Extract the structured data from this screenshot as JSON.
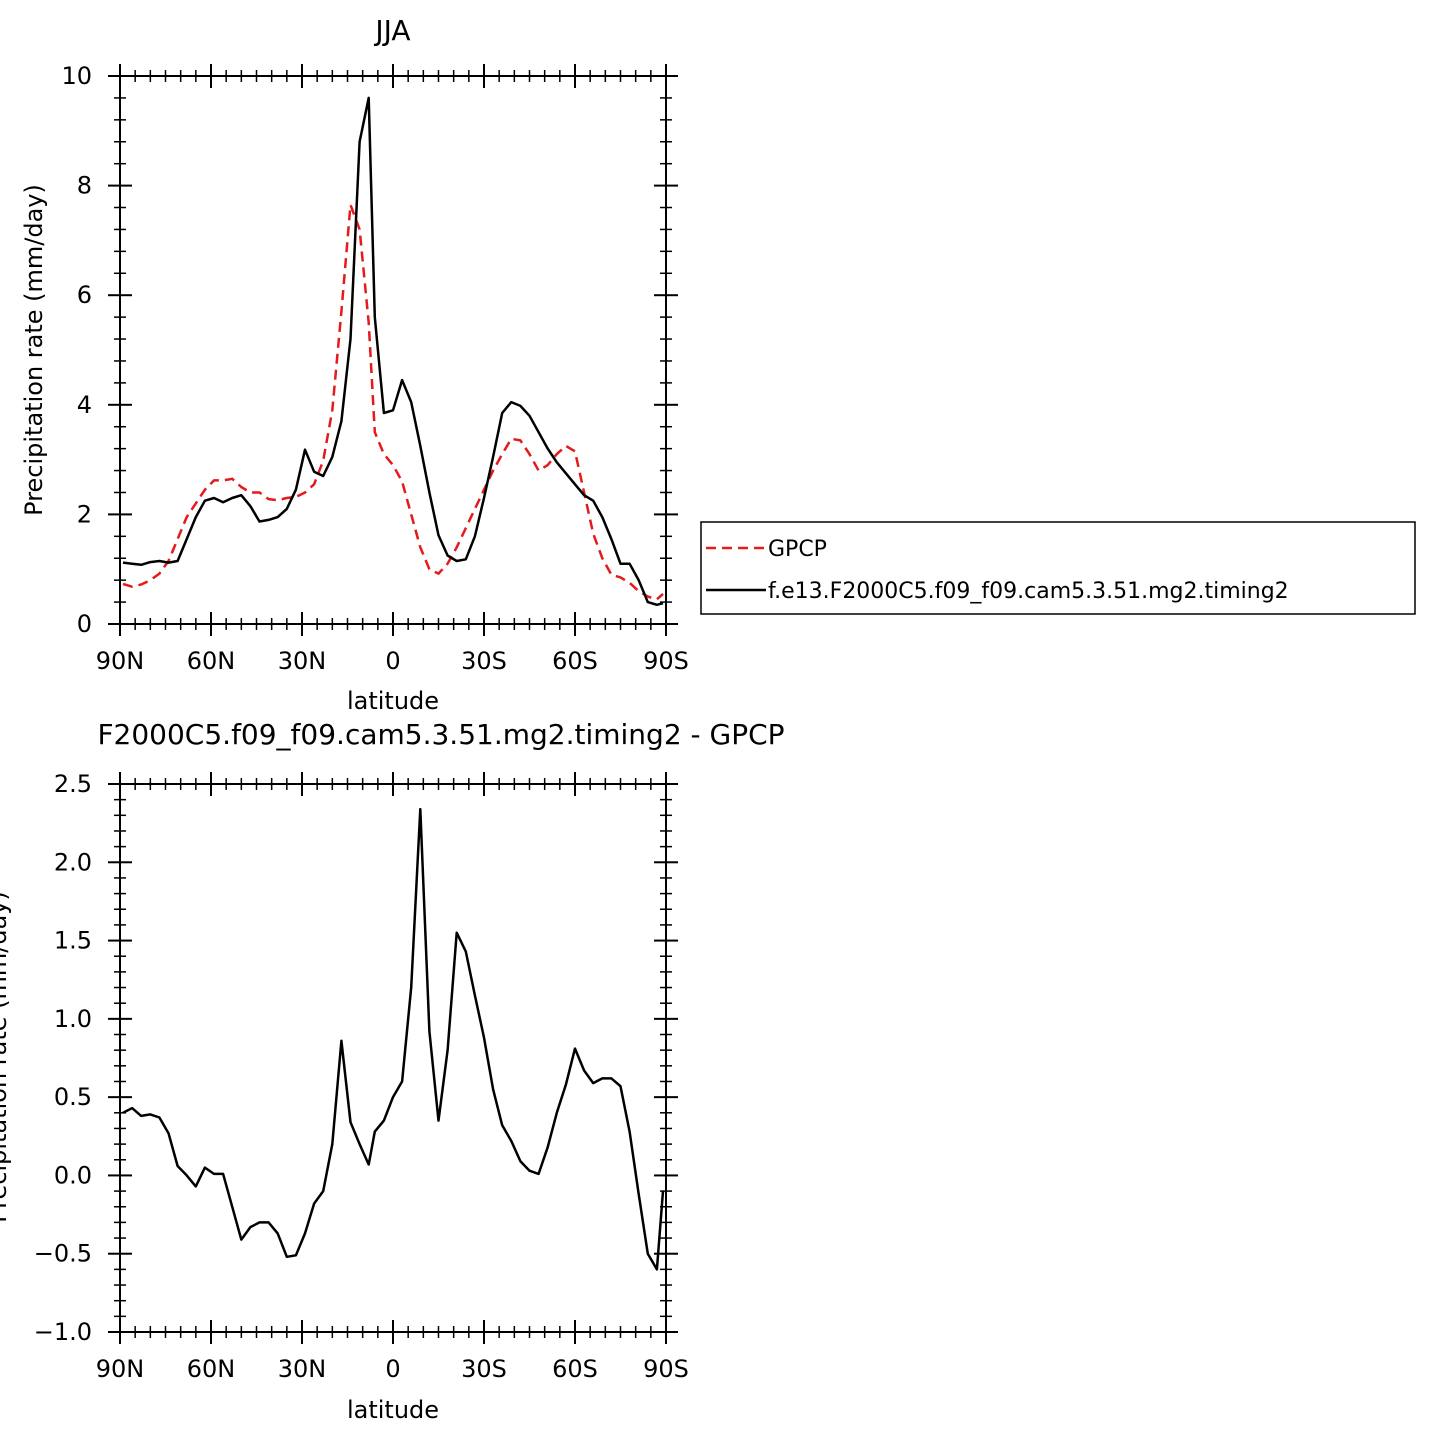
{
  "chart_data": [
    {
      "type": "line",
      "title": "JJA",
      "xlabel": "latitude",
      "ylabel": "Precipitation rate (mm/day)",
      "xlim": [
        90,
        -90
      ],
      "ylim": [
        0,
        10
      ],
      "xticks": [
        90,
        60,
        30,
        0,
        -30,
        -60,
        -90
      ],
      "xtick_labels": [
        "90N",
        "60N",
        "30N",
        "0",
        "30S",
        "60S",
        "90S"
      ],
      "yticks": [
        0,
        2,
        4,
        6,
        8,
        10
      ],
      "ytick_labels": [
        "0",
        "2",
        "4",
        "6",
        "8",
        "10"
      ],
      "grid": false,
      "legend_position": "right",
      "series": [
        {
          "name": "GPCP",
          "color": "#e41a1c",
          "dash": "dashed",
          "x": [
            89,
            86,
            83,
            80,
            77,
            74,
            71,
            68,
            65,
            62,
            59,
            56,
            53,
            50,
            47,
            44,
            41,
            38,
            35,
            32,
            29,
            26,
            23,
            20,
            17,
            14,
            11,
            8,
            6,
            3,
            0,
            -3,
            -6,
            -9,
            -12,
            -15,
            -18,
            -21,
            -24,
            -27,
            -30,
            -33,
            -36,
            -39,
            -42,
            -45,
            -48,
            -51,
            -54,
            -57,
            -60,
            -63,
            -66,
            -69,
            -72,
            -75,
            -78,
            -81,
            -84,
            -87,
            -89
          ],
          "y": [
            0.73,
            0.68,
            0.72,
            0.8,
            0.92,
            1.15,
            1.55,
            1.95,
            2.2,
            2.45,
            2.62,
            2.62,
            2.65,
            2.5,
            2.4,
            2.4,
            2.28,
            2.26,
            2.3,
            2.32,
            2.4,
            2.55,
            2.98,
            3.9,
            5.7,
            7.65,
            7.2,
            5.5,
            3.5,
            3.1,
            2.9,
            2.6,
            2.0,
            1.4,
            1.0,
            0.92,
            1.1,
            1.4,
            1.75,
            2.1,
            2.45,
            2.8,
            3.1,
            3.38,
            3.35,
            3.1,
            2.8,
            2.9,
            3.1,
            3.25,
            3.15,
            2.4,
            1.65,
            1.2,
            0.9,
            0.85,
            0.75,
            0.6,
            0.5,
            0.45,
            0.55
          ]
        },
        {
          "name": "f.e13.F2000C5.f09_f09.cam5.3.51.mg2.timing2",
          "color": "#000000",
          "dash": "solid",
          "x": [
            89,
            86,
            83,
            80,
            77,
            74,
            71,
            68,
            65,
            62,
            59,
            56,
            53,
            50,
            47,
            44,
            41,
            38,
            35,
            32,
            29,
            26,
            23,
            20,
            17,
            14,
            11,
            8,
            6,
            3,
            0,
            -3,
            -6,
            -9,
            -12,
            -15,
            -18,
            -21,
            -24,
            -27,
            -30,
            -33,
            -36,
            -39,
            -42,
            -45,
            -48,
            -51,
            -54,
            -57,
            -60,
            -63,
            -66,
            -69,
            -72,
            -75,
            -78,
            -81,
            -84,
            -87,
            -89
          ],
          "y": [
            1.12,
            1.1,
            1.08,
            1.13,
            1.15,
            1.12,
            1.15,
            1.55,
            1.95,
            2.25,
            2.3,
            2.22,
            2.3,
            2.35,
            2.15,
            1.87,
            1.9,
            1.95,
            2.1,
            2.45,
            3.18,
            2.78,
            2.7,
            3.05,
            3.7,
            5.2,
            8.8,
            9.6,
            5.6,
            3.85,
            3.9,
            4.45,
            4.05,
            3.25,
            2.4,
            1.62,
            1.25,
            1.15,
            1.18,
            1.6,
            2.3,
            3.05,
            3.85,
            4.05,
            3.98,
            3.8,
            3.5,
            3.2,
            2.95,
            2.75,
            2.55,
            2.35,
            2.25,
            1.95,
            1.55,
            1.1,
            1.1,
            0.8,
            0.4,
            0.35,
            0.38
          ]
        }
      ]
    },
    {
      "type": "line",
      "title": "F2000C5.f09_f09.cam5.3.51.mg2.timing2 - GPCP",
      "xlabel": "latitude",
      "ylabel": "Precipitation rate (mm/day)",
      "xlim": [
        90,
        -90
      ],
      "ylim": [
        -1.0,
        2.5
      ],
      "xticks": [
        90,
        60,
        30,
        0,
        -30,
        -60,
        -90
      ],
      "xtick_labels": [
        "90N",
        "60N",
        "30N",
        "0",
        "30S",
        "60S",
        "90S"
      ],
      "yticks": [
        -1.0,
        -0.5,
        0.0,
        0.5,
        1.0,
        1.5,
        2.0,
        2.5
      ],
      "ytick_labels": [
        "−1.0",
        "−0.5",
        "0.0",
        "0.5",
        "1.0",
        "1.5",
        "2.0",
        "2.5"
      ],
      "grid": false,
      "series": [
        {
          "color": "#000000",
          "dash": "solid",
          "x": [
            89,
            86,
            83,
            80,
            77,
            74,
            71,
            68,
            65,
            62,
            59,
            56,
            53,
            50,
            47,
            44,
            41,
            38,
            35,
            32,
            29,
            26,
            23,
            20,
            17,
            14,
            11,
            8,
            6,
            3,
            0,
            -3,
            -6,
            -9,
            -12,
            -15,
            -18,
            -21,
            -24,
            -27,
            -30,
            -33,
            -36,
            -39,
            -42,
            -45,
            -48,
            -51,
            -54,
            -57,
            -60,
            -63,
            -66,
            -69,
            -72,
            -75,
            -78,
            -81,
            -84,
            -87,
            -89
          ],
          "y": [
            0.4,
            0.43,
            0.38,
            0.39,
            0.37,
            0.27,
            0.06,
            0.0,
            -0.07,
            0.05,
            0.01,
            0.01,
            -0.2,
            -0.41,
            -0.33,
            -0.3,
            -0.3,
            -0.37,
            -0.52,
            -0.51,
            -0.37,
            -0.18,
            -0.1,
            0.2,
            0.86,
            0.34,
            0.2,
            0.07,
            0.28,
            0.35,
            0.5,
            0.6,
            1.2,
            2.34,
            0.92,
            0.35,
            0.8,
            1.55,
            1.43,
            1.15,
            0.88,
            0.55,
            0.32,
            0.22,
            0.09,
            0.03,
            0.01,
            0.18,
            0.4,
            0.58,
            0.81,
            0.67,
            0.59,
            0.62,
            0.62,
            0.57,
            0.28,
            -0.12,
            -0.5,
            -0.6,
            -0.1
          ]
        }
      ]
    }
  ]
}
